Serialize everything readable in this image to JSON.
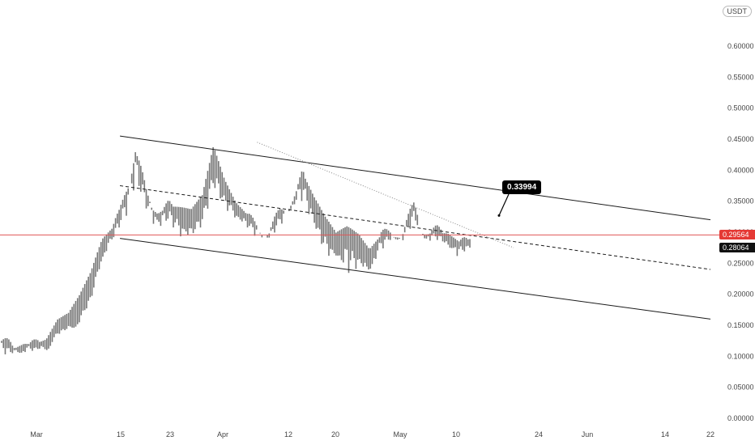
{
  "currency_label": "USDT",
  "colors": {
    "candles": "#777777",
    "channel": "#1a1a1a",
    "horizontal_line": "#e05656",
    "price_tag_red": "#e53935",
    "price_tag_dark": "#111111",
    "callout_bg": "#000000"
  },
  "chart_data": {
    "type": "line",
    "title": "",
    "xlabel": "",
    "ylabel": "",
    "y_scale": "linear",
    "ylim": [
      0,
      0.65
    ],
    "grid": false,
    "legend": "none",
    "x_tick_labels": [
      "Mar",
      "15",
      "23",
      "Apr",
      "12",
      "20",
      "May",
      "10",
      "24",
      "Jun",
      "14",
      "22"
    ],
    "y_tick_labels": [
      "0.00000",
      "0.05000",
      "0.10000",
      "0.15000",
      "0.20000",
      "0.25000",
      "0.30000",
      "0.35000",
      "0.40000",
      "0.45000",
      "0.50000",
      "0.55000",
      "0.60000"
    ],
    "series": [
      {
        "type": "candles",
        "x": [
          "Feb 22",
          "Feb 24",
          "Feb 26",
          "Feb 28",
          "Mar 1",
          "Mar 3",
          "Mar 5",
          "Mar 7",
          "Mar 9",
          "Mar 11",
          "Mar 13",
          "Mar 14",
          "Mar 15",
          "Mar 16",
          "Mar 18",
          "Mar 20",
          "Mar 22",
          "Mar 24",
          "Mar 26",
          "Mar 28",
          "Mar 30",
          "Apr 1",
          "Apr 3",
          "Apr 5",
          "Apr 7",
          "Apr 9",
          "Apr 11",
          "Apr 13",
          "Apr 15",
          "Apr 17",
          "Apr 19",
          "Apr 21",
          "Apr 23",
          "Apr 25",
          "Apr 27",
          "Apr 29",
          "May 1",
          "May 3",
          "May 5",
          "May 7",
          "May 9",
          "May 11",
          "May 12"
        ],
        "values": [
          0.125,
          0.11,
          0.12,
          0.115,
          0.12,
          0.14,
          0.15,
          0.165,
          0.2,
          0.27,
          0.3,
          0.35,
          0.43,
          0.36,
          0.33,
          0.34,
          0.32,
          0.31,
          0.33,
          0.41,
          0.36,
          0.34,
          0.32,
          0.31,
          0.3,
          0.33,
          0.35,
          0.39,
          0.33,
          0.3,
          0.26,
          0.29,
          0.26,
          0.25,
          0.29,
          0.3,
          0.3,
          0.34,
          0.3,
          0.3,
          0.29,
          0.28,
          0.28
        ],
        "highs": [
          0.135,
          0.125,
          0.13,
          0.125,
          0.13,
          0.16,
          0.17,
          0.2,
          0.24,
          0.3,
          0.33,
          0.4,
          0.455,
          0.39,
          0.36,
          0.36,
          0.35,
          0.34,
          0.36,
          0.44,
          0.39,
          0.36,
          0.35,
          0.33,
          0.32,
          0.36,
          0.38,
          0.42,
          0.37,
          0.33,
          0.3,
          0.31,
          0.3,
          0.28,
          0.31,
          0.32,
          0.33,
          0.35,
          0.33,
          0.32,
          0.31,
          0.29,
          0.29
        ],
        "lows": [
          0.09,
          0.1,
          0.1,
          0.105,
          0.11,
          0.13,
          0.14,
          0.15,
          0.18,
          0.25,
          0.28,
          0.3,
          0.34,
          0.32,
          0.29,
          0.3,
          0.28,
          0.28,
          0.3,
          0.34,
          0.33,
          0.31,
          0.3,
          0.28,
          0.28,
          0.3,
          0.33,
          0.33,
          0.3,
          0.24,
          0.27,
          0.19,
          0.24,
          0.23,
          0.26,
          0.28,
          0.28,
          0.3,
          0.28,
          0.28,
          0.27,
          0.25,
          0.27
        ]
      }
    ],
    "channel": {
      "upper": {
        "x": [
          "Mar 15",
          "Jun 22"
        ],
        "y": [
          0.455,
          0.32
        ]
      },
      "middle_dashed": {
        "x": [
          "Mar 15",
          "Jun 22"
        ],
        "y": [
          0.375,
          0.24
        ]
      },
      "lower": {
        "x": [
          "Mar 15",
          "Jun 22"
        ],
        "y": [
          0.29,
          0.16
        ]
      },
      "diagonal_dotted": {
        "x": [
          "Apr 7",
          "May 20"
        ],
        "y": [
          0.445,
          0.275
        ]
      }
    },
    "horizontal_line": {
      "y": 0.29564
    },
    "price_labels": [
      "0.29564",
      "0.28064"
    ],
    "callout": {
      "text": "0.33994",
      "x": "May 18",
      "y": 0.34
    }
  }
}
